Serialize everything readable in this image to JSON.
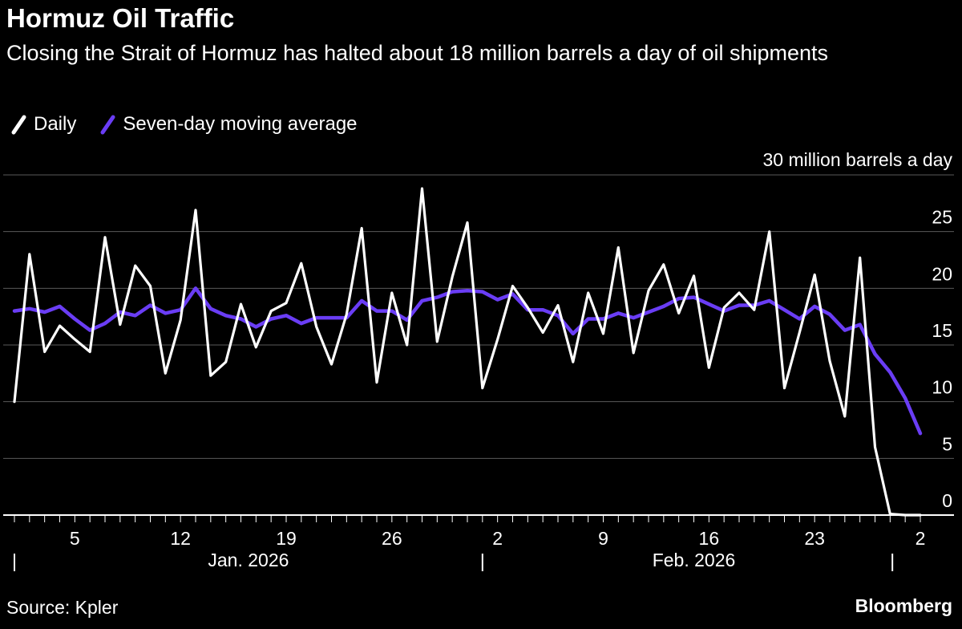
{
  "title": "Hormuz Oil Traffic",
  "subtitle": "Closing the Strait of Hormuz has halted about 18 million barrels a day of oil shipments",
  "legend": [
    {
      "label": "Daily",
      "color": "#ffffff"
    },
    {
      "label": "Seven-day moving average",
      "color": "#6a3df5"
    }
  ],
  "source": "Source: Kpler",
  "brand": "Bloomberg",
  "chart_data": {
    "type": "line",
    "unit_label": "30 million barrels a day",
    "ylim": [
      0,
      30
    ],
    "y_ticks": [
      0,
      5,
      10,
      15,
      20,
      25,
      30
    ],
    "grid": true,
    "x_start": "2026-01-01",
    "x_end": "2026-03-02",
    "x_ticks": [
      {
        "date": "2026-01-05",
        "label": "5"
      },
      {
        "date": "2026-01-12",
        "label": "12"
      },
      {
        "date": "2026-01-19",
        "label": "19"
      },
      {
        "date": "2026-01-26",
        "label": "26"
      },
      {
        "date": "2026-02-02",
        "label": "2"
      },
      {
        "date": "2026-02-09",
        "label": "9"
      },
      {
        "date": "2026-02-16",
        "label": "16"
      },
      {
        "date": "2026-02-23",
        "label": "23"
      },
      {
        "date": "2026-03-02",
        "label": "2"
      }
    ],
    "months": [
      {
        "label": "Jan. 2026",
        "start": "2026-01-01",
        "end": "2026-02-01"
      },
      {
        "label": "Feb. 2026",
        "start": "2026-02-01",
        "end": "2026-03-01"
      }
    ],
    "series": [
      {
        "name": "Daily",
        "color": "#ffffff",
        "values": [
          [
            "2026-01-01",
            10.0
          ],
          [
            "2026-01-02",
            23.0
          ],
          [
            "2026-01-03",
            14.4
          ],
          [
            "2026-01-04",
            16.7
          ],
          [
            "2026-01-05",
            15.5
          ],
          [
            "2026-01-06",
            14.4
          ],
          [
            "2026-01-07",
            24.5
          ],
          [
            "2026-01-08",
            16.8
          ],
          [
            "2026-01-09",
            22.0
          ],
          [
            "2026-01-10",
            20.2
          ],
          [
            "2026-01-11",
            12.5
          ],
          [
            "2026-01-12",
            17.2
          ],
          [
            "2026-01-13",
            26.9
          ],
          [
            "2026-01-14",
            12.3
          ],
          [
            "2026-01-15",
            13.5
          ],
          [
            "2026-01-16",
            18.6
          ],
          [
            "2026-01-17",
            14.8
          ],
          [
            "2026-01-18",
            18.0
          ],
          [
            "2026-01-19",
            18.7
          ],
          [
            "2026-01-20",
            22.2
          ],
          [
            "2026-01-21",
            16.6
          ],
          [
            "2026-01-22",
            13.3
          ],
          [
            "2026-01-23",
            17.7
          ],
          [
            "2026-01-24",
            25.3
          ],
          [
            "2026-01-25",
            11.7
          ],
          [
            "2026-01-26",
            19.6
          ],
          [
            "2026-01-27",
            15.0
          ],
          [
            "2026-01-28",
            28.8
          ],
          [
            "2026-01-29",
            15.3
          ],
          [
            "2026-01-30",
            21.0
          ],
          [
            "2026-01-31",
            25.8
          ],
          [
            "2026-02-01",
            11.2
          ],
          [
            "2026-02-02",
            15.5
          ],
          [
            "2026-02-03",
            20.2
          ],
          [
            "2026-02-04",
            18.3
          ],
          [
            "2026-02-05",
            16.1
          ],
          [
            "2026-02-06",
            18.5
          ],
          [
            "2026-02-07",
            13.5
          ],
          [
            "2026-02-08",
            19.6
          ],
          [
            "2026-02-09",
            16.0
          ],
          [
            "2026-02-10",
            23.6
          ],
          [
            "2026-02-11",
            14.3
          ],
          [
            "2026-02-12",
            19.8
          ],
          [
            "2026-02-13",
            22.1
          ],
          [
            "2026-02-14",
            17.8
          ],
          [
            "2026-02-15",
            21.1
          ],
          [
            "2026-02-16",
            13.0
          ],
          [
            "2026-02-17",
            18.3
          ],
          [
            "2026-02-18",
            19.6
          ],
          [
            "2026-02-19",
            18.1
          ],
          [
            "2026-02-20",
            25.0
          ],
          [
            "2026-02-21",
            11.2
          ],
          [
            "2026-02-22",
            16.1
          ],
          [
            "2026-02-23",
            21.2
          ],
          [
            "2026-02-24",
            13.6
          ],
          [
            "2026-02-25",
            8.7
          ],
          [
            "2026-02-26",
            22.7
          ],
          [
            "2026-02-27",
            6.0
          ],
          [
            "2026-02-28",
            0.1
          ],
          [
            "2026-03-01",
            0.0
          ],
          [
            "2026-03-02",
            0.0
          ]
        ]
      },
      {
        "name": "Seven-day moving average",
        "color": "#6a3df5",
        "values": [
          [
            "2026-01-01",
            18.0
          ],
          [
            "2026-01-02",
            18.2
          ],
          [
            "2026-01-03",
            17.9
          ],
          [
            "2026-01-04",
            18.4
          ],
          [
            "2026-01-05",
            17.3
          ],
          [
            "2026-01-06",
            16.3
          ],
          [
            "2026-01-07",
            16.9
          ],
          [
            "2026-01-08",
            17.9
          ],
          [
            "2026-01-09",
            17.6
          ],
          [
            "2026-01-10",
            18.5
          ],
          [
            "2026-01-11",
            17.8
          ],
          [
            "2026-01-12",
            18.1
          ],
          [
            "2026-01-13",
            20.0
          ],
          [
            "2026-01-14",
            18.2
          ],
          [
            "2026-01-15",
            17.6
          ],
          [
            "2026-01-16",
            17.3
          ],
          [
            "2026-01-17",
            16.6
          ],
          [
            "2026-01-18",
            17.3
          ],
          [
            "2026-01-19",
            17.6
          ],
          [
            "2026-01-20",
            16.9
          ],
          [
            "2026-01-21",
            17.4
          ],
          [
            "2026-01-22",
            17.4
          ],
          [
            "2026-01-23",
            17.4
          ],
          [
            "2026-01-24",
            18.9
          ],
          [
            "2026-01-25",
            18.0
          ],
          [
            "2026-01-26",
            18.0
          ],
          [
            "2026-01-27",
            17.2
          ],
          [
            "2026-01-28",
            18.9
          ],
          [
            "2026-01-29",
            19.2
          ],
          [
            "2026-01-30",
            19.7
          ],
          [
            "2026-01-31",
            19.8
          ],
          [
            "2026-02-01",
            19.7
          ],
          [
            "2026-02-02",
            19.0
          ],
          [
            "2026-02-03",
            19.5
          ],
          [
            "2026-02-04",
            18.1
          ],
          [
            "2026-02-05",
            18.1
          ],
          [
            "2026-02-06",
            17.6
          ],
          [
            "2026-02-07",
            16.0
          ],
          [
            "2026-02-08",
            17.3
          ],
          [
            "2026-02-09",
            17.3
          ],
          [
            "2026-02-10",
            17.8
          ],
          [
            "2026-02-11",
            17.4
          ],
          [
            "2026-02-12",
            17.9
          ],
          [
            "2026-02-13",
            18.4
          ],
          [
            "2026-02-14",
            19.1
          ],
          [
            "2026-02-15",
            19.2
          ],
          [
            "2026-02-16",
            18.6
          ],
          [
            "2026-02-17",
            18.0
          ],
          [
            "2026-02-18",
            18.5
          ],
          [
            "2026-02-19",
            18.5
          ],
          [
            "2026-02-20",
            18.9
          ],
          [
            "2026-02-21",
            18.1
          ],
          [
            "2026-02-22",
            17.3
          ],
          [
            "2026-02-23",
            18.4
          ],
          [
            "2026-02-24",
            17.7
          ],
          [
            "2026-02-25",
            16.3
          ],
          [
            "2026-02-26",
            16.8
          ],
          [
            "2026-02-27",
            14.2
          ],
          [
            "2026-02-28",
            12.6
          ],
          [
            "2026-03-01",
            10.3
          ],
          [
            "2026-03-02",
            7.2
          ]
        ]
      }
    ]
  }
}
